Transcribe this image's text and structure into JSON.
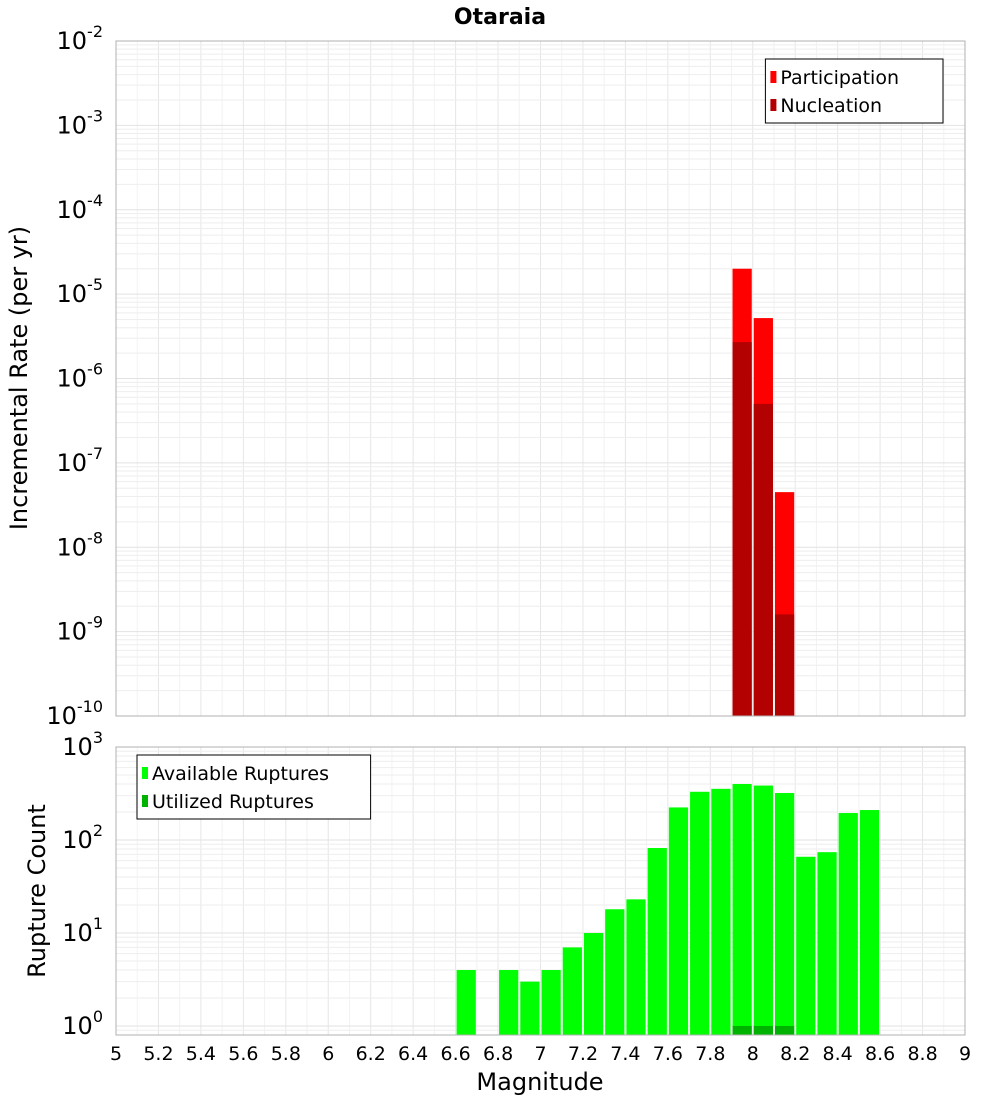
{
  "chart_data": [
    {
      "type": "bar",
      "title": "Otaraia",
      "xlabel": "",
      "ylabel": "Incremental Rate (per yr)",
      "xlim": [
        5,
        9
      ],
      "ylim": [
        1e-10,
        0.01
      ],
      "y_scale": "log",
      "y_tick_exponents": [
        -10,
        -9,
        -8,
        -7,
        -6,
        -5,
        -4,
        -3,
        -2
      ],
      "bin_width": 0.1,
      "grid": true,
      "legend_position": "top-right",
      "series": [
        {
          "name": "Participation",
          "color": "#ff0000",
          "points": [
            {
              "x": 7.95,
              "y": 2e-05
            },
            {
              "x": 8.05,
              "y": 5.2e-06
            },
            {
              "x": 8.15,
              "y": 4.5e-08
            }
          ]
        },
        {
          "name": "Nucleation",
          "color": "#b30000",
          "points": [
            {
              "x": 7.95,
              "y": 2.7e-06
            },
            {
              "x": 8.05,
              "y": 5e-07
            },
            {
              "x": 8.15,
              "y": 1.6e-09
            }
          ]
        }
      ]
    },
    {
      "type": "bar",
      "xlabel": "Magnitude",
      "ylabel": "Rupture Count",
      "xlim": [
        5,
        9
      ],
      "ylim": [
        0.8,
        1000
      ],
      "y_scale": "log",
      "y_tick_exponents": [
        0,
        1,
        2,
        3
      ],
      "x_ticks": [
        "5",
        "5.2",
        "5.4",
        "5.6",
        "5.8",
        "6",
        "6.2",
        "6.4",
        "6.6",
        "6.8",
        "7",
        "7.2",
        "7.4",
        "7.6",
        "7.8",
        "8",
        "8.2",
        "8.4",
        "8.6",
        "8.8",
        "9"
      ],
      "bin_width": 0.1,
      "grid": true,
      "legend_position": "top-left",
      "series": [
        {
          "name": "Available Ruptures",
          "color": "#00ff00",
          "points": [
            {
              "x": 6.65,
              "y": 4
            },
            {
              "x": 6.85,
              "y": 4
            },
            {
              "x": 6.95,
              "y": 3
            },
            {
              "x": 7.05,
              "y": 4
            },
            {
              "x": 7.15,
              "y": 7
            },
            {
              "x": 7.25,
              "y": 10
            },
            {
              "x": 7.35,
              "y": 18
            },
            {
              "x": 7.45,
              "y": 23
            },
            {
              "x": 7.55,
              "y": 82
            },
            {
              "x": 7.65,
              "y": 224
            },
            {
              "x": 7.75,
              "y": 330
            },
            {
              "x": 7.85,
              "y": 355
            },
            {
              "x": 7.95,
              "y": 400
            },
            {
              "x": 8.05,
              "y": 385
            },
            {
              "x": 8.15,
              "y": 320
            },
            {
              "x": 8.25,
              "y": 66
            },
            {
              "x": 8.35,
              "y": 74
            },
            {
              "x": 8.45,
              "y": 195
            },
            {
              "x": 8.55,
              "y": 210
            }
          ]
        },
        {
          "name": "Utilized Ruptures",
          "color": "#00b300",
          "points": [
            {
              "x": 7.95,
              "y": 1
            },
            {
              "x": 8.05,
              "y": 1
            },
            {
              "x": 8.15,
              "y": 1
            }
          ]
        }
      ]
    }
  ]
}
